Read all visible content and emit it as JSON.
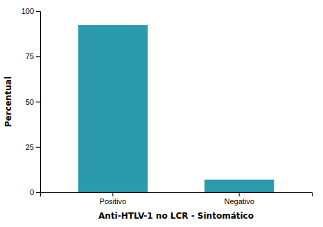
{
  "chart_data": {
    "type": "bar",
    "categories": [
      "Positivo",
      "Negativo"
    ],
    "values": [
      92.3,
      7.0
    ],
    "color": "#2a9aac",
    "xlabel": "Anti-HTLV-1 no LCR - Sintomático",
    "ylabel": "Percentual",
    "ylim": [
      0,
      100
    ],
    "yticks": [
      0,
      25,
      50,
      75,
      100
    ],
    "grid": false
  }
}
